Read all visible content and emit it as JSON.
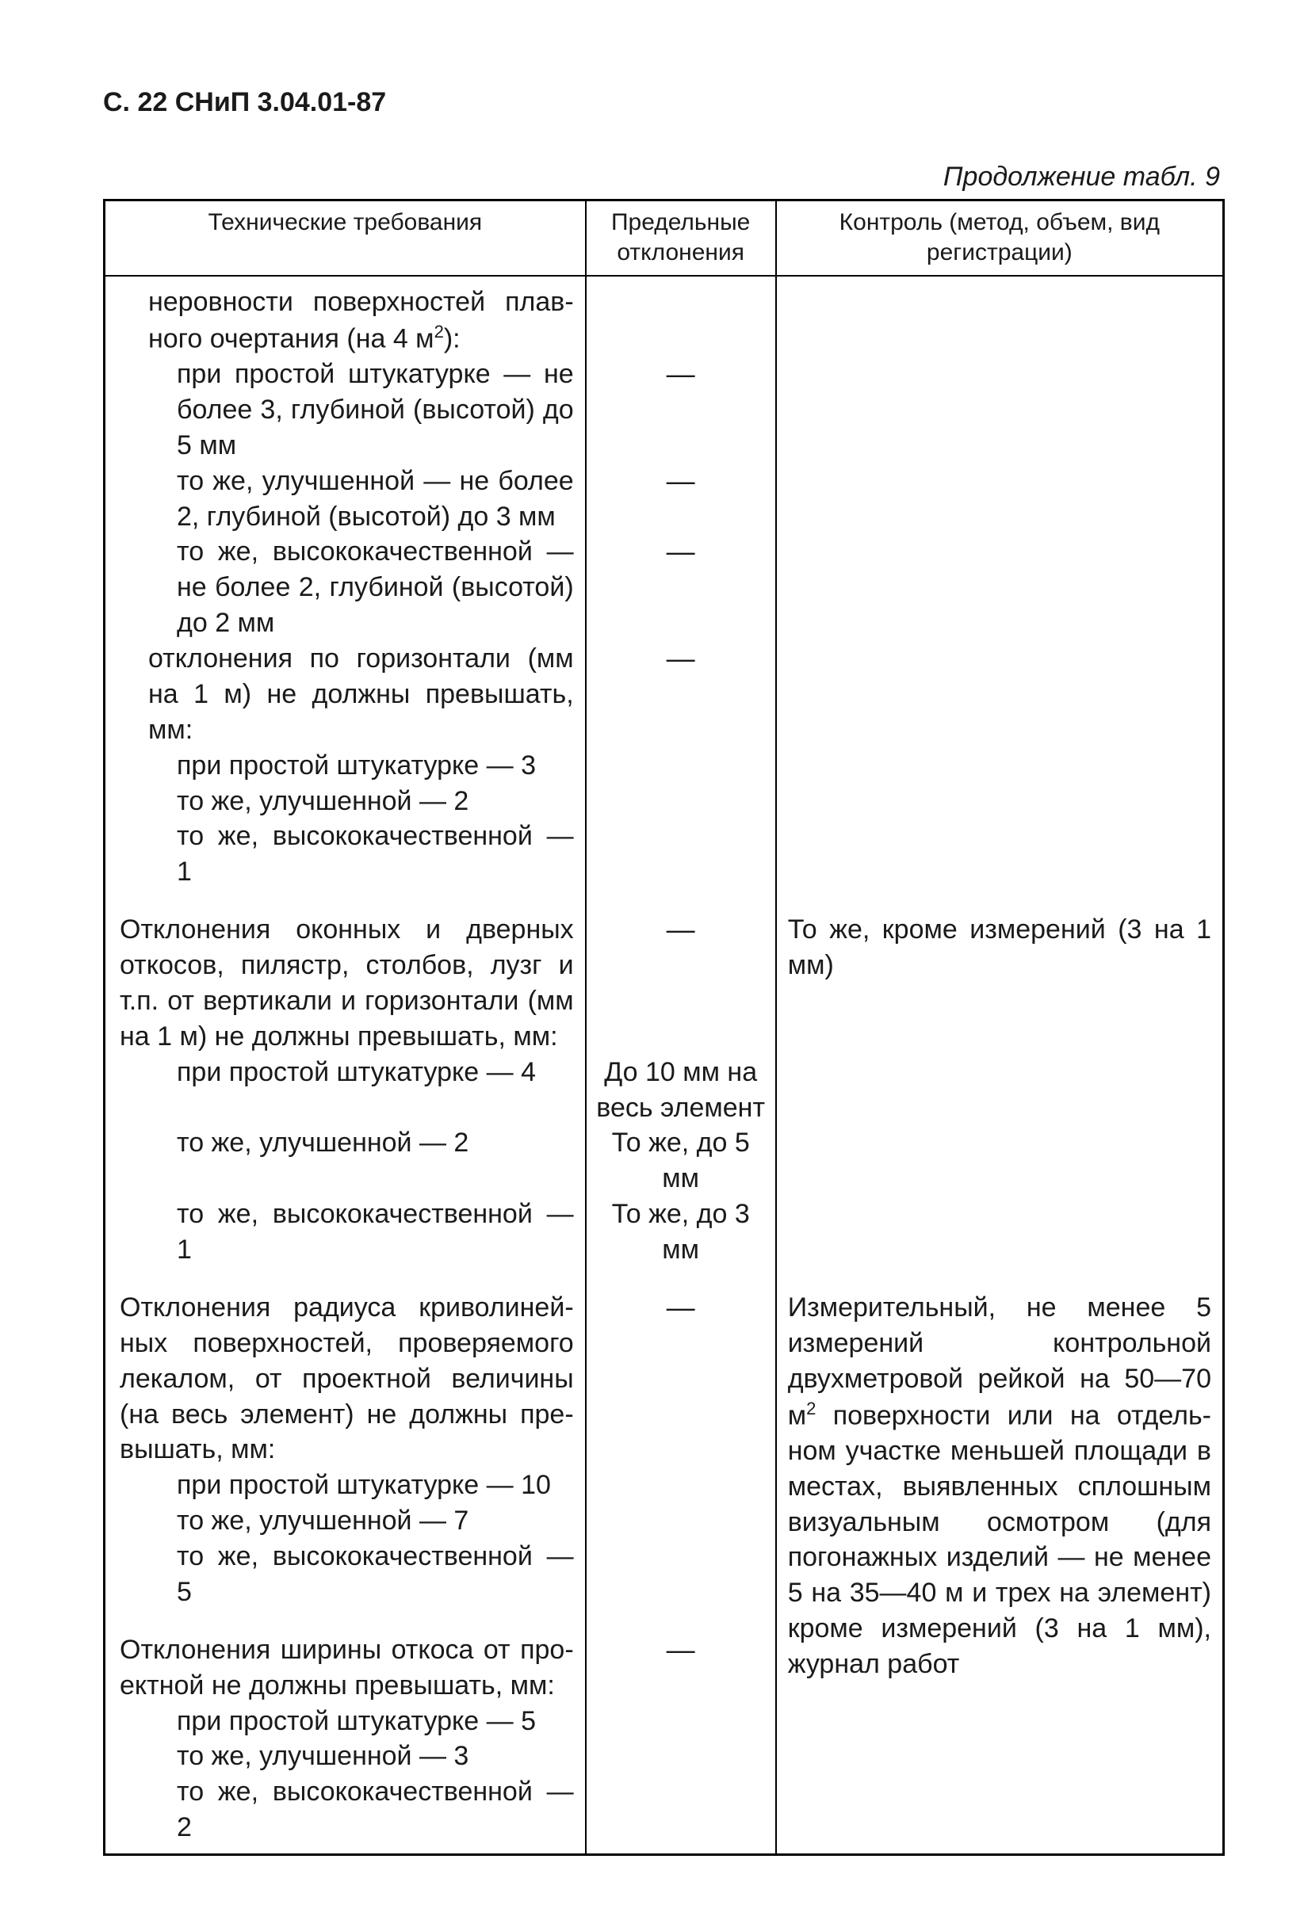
{
  "header": "С. 22 СНиП 3.04.01-87",
  "caption": "Продолжение табл. 9",
  "columns": {
    "c1": "Технические требования",
    "c2": "Предельные отклонения",
    "c3": "Контроль (метод, объем, вид регистрации)"
  },
  "col_widths": [
    "43%",
    "17%",
    "40%"
  ],
  "header_fontsize": 30,
  "body_fontsize": 34,
  "border_color": "#000000",
  "background_color": "#ffffff",
  "dash": "—",
  "rows": [
    {
      "c1": "неровности поверхностей плав­ного очертания (на 4 м²):",
      "c1_html": "неровности поверхностей плав&shy;ного очертания (на 4 м<sup>2</sup>):",
      "c1_class": "indent-1",
      "c2": "",
      "c3": ""
    },
    {
      "c1": "при простой штукатурке — не более 3, глубиной (высотой) до 5 мм",
      "c1_class": "indent-2",
      "c2": "—",
      "c3": ""
    },
    {
      "c1": "то же, улучшенной — не бо­лее 2, глубиной (высотой) до 3 мм",
      "c1_html": "то же, улучшенной — не бо&shy;лее 2, глубиной (высотой) до 3 мм",
      "c1_class": "indent-2",
      "c2": "—",
      "c3": ""
    },
    {
      "c1": "то же, высококачественной — не более 2, глубиной (высо­той) до 2 мм",
      "c1_html": "то же, высококачественной — не более 2, глубиной (высо&shy;той) до 2 мм",
      "c1_class": "indent-2",
      "c2": "—",
      "c3": ""
    },
    {
      "c1": "отклонения по горизонтали (мм на 1 м) не должны превышать, мм:",
      "c1_class": "indent-1",
      "c2": "—",
      "c3": ""
    },
    {
      "c1": "при простой штукатурке — 3",
      "c1_class": "indent-2",
      "c2": "",
      "c3": ""
    },
    {
      "c1": "то же, улучшенной — 2",
      "c1_class": "indent-2",
      "c2": "",
      "c3": ""
    },
    {
      "c1": "то же, высококачественной — 1",
      "c1_class": "indent-2",
      "c2": "",
      "c3": ""
    },
    {
      "c1": "Отклонения оконных и дверных откосов, пилястр, столбов, лузг и т.п. от вертикали и горизонтали (мм на 1 м) не должны превышать, мм:",
      "c1_class": "gap-above",
      "c2": "—",
      "c2_class": "gap-above",
      "c3": "То же, кроме измерений (3 на 1 мм)",
      "c3_class": "gap-above"
    },
    {
      "c1": "при простой штукатурке — 4",
      "c1_class": "indent-2",
      "c2": "До 10 мм на весь элемент",
      "c3": ""
    },
    {
      "c1": "то же, улучшенной — 2",
      "c1_class": "indent-2",
      "c2": "То же, до 5 мм",
      "c3": ""
    },
    {
      "c1": "то же, высококачественной — 1",
      "c1_class": "indent-2",
      "c2": "То же, до 3 мм",
      "c3": ""
    },
    {
      "c1": "Отклонения радиуса криволиней­ных поверхностей, проверяемого лекалом, от проектной величины (на весь элемент) не должны пре­вышать, мм:",
      "c1_html": "Отклонения радиуса криволиней&shy;ных поверхностей, проверяемого лекалом, от проектной величины (на весь элемент) не должны пре&shy;вышать, мм:",
      "c1_class": "gap-above",
      "c2": "—",
      "c2_class": "gap-above",
      "c3": "Измерительный, не менее 5 измерений конт­рольной двухметровой рейкой на 50—70 м² по­верхности или на отдель­ном участке меньшей площади в местах, выяв­ленных сплошным визу­альным осмотром (для погонажных изделий — не менее 5 на 35—40 м и трех на элемент) кроме измерений (3 на 1 мм), журнал работ",
      "c3_html": "Измерительный, не менее 5 измерений конт&shy;рольной двухметровой рейкой на 50—70 м<sup>2</sup> по&shy;верхности или на отдель&shy;ном участке меньшей площади в местах, выяв&shy;ленных сплошным визу&shy;альным осмотром (для погонажных изделий — не менее 5 на 35—40 м и трех на элемент) кроме измерений (3 на 1 мм), журнал работ",
      "c3_class": "gap-above",
      "c3_rowspan": 8
    },
    {
      "c1": "при простой штукатурке — 10",
      "c1_class": "indent-2",
      "c2": ""
    },
    {
      "c1": "то же, улучшенной — 7",
      "c1_class": "indent-2",
      "c2": ""
    },
    {
      "c1": "то же, высококачественной — 5",
      "c1_class": "indent-2",
      "c2": ""
    },
    {
      "c1": "Отклонения ширины откоса от про­ектной не должны превышать, мм:",
      "c1_html": "Отклонения ширины откоса от про&shy;ектной не должны превышать, мм:",
      "c1_class": "gap-above",
      "c2": "—",
      "c2_class": "gap-above"
    },
    {
      "c1": "при простой штукатурке — 5",
      "c1_class": "indent-2",
      "c2": ""
    },
    {
      "c1": "то же, улучшенной — 3",
      "c1_class": "indent-2",
      "c2": ""
    },
    {
      "c1": "то же, высококачественной — 2",
      "c1_class": "indent-2",
      "c2": ""
    }
  ]
}
